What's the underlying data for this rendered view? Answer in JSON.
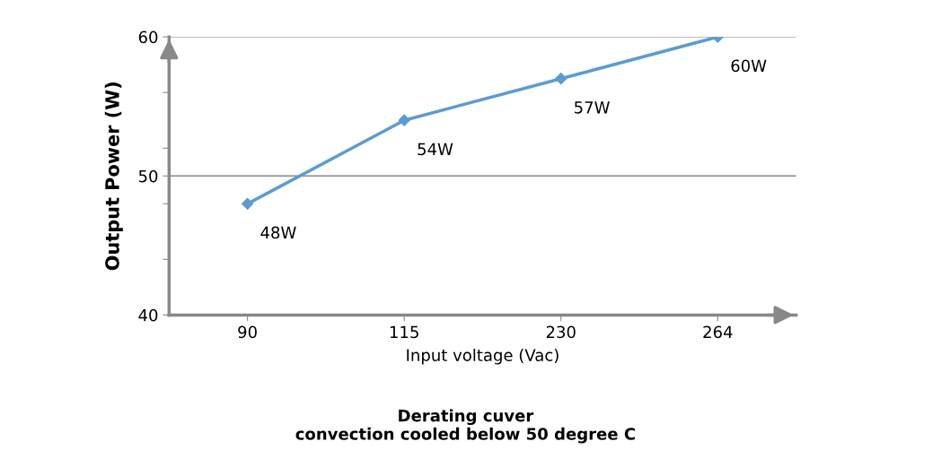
{
  "chart_data": {
    "type": "line",
    "title": "Derating cuver\nconvection cooled below 50 degree C",
    "xlabel": "Input voltage (Vac)",
    "ylabel": "Output Power (W)",
    "categories": [
      "90",
      "115",
      "230",
      "264"
    ],
    "series": [
      {
        "color": "#5b9bd5",
        "values": [
          48,
          54,
          57,
          60
        ],
        "value_labels": [
          "48W",
          "54W",
          "57W",
          "60W"
        ]
      }
    ],
    "ylim": [
      40,
      60
    ],
    "yticks": [
      40,
      {
        "value": 44,
        "label": null
      },
      {
        "value": 48,
        "label": null
      },
      50,
      {
        "value": 52,
        "label": null
      },
      {
        "value": 56,
        "label": null
      },
      60
    ],
    "grid": "y",
    "marker": "diamond",
    "line_style": "solid"
  }
}
